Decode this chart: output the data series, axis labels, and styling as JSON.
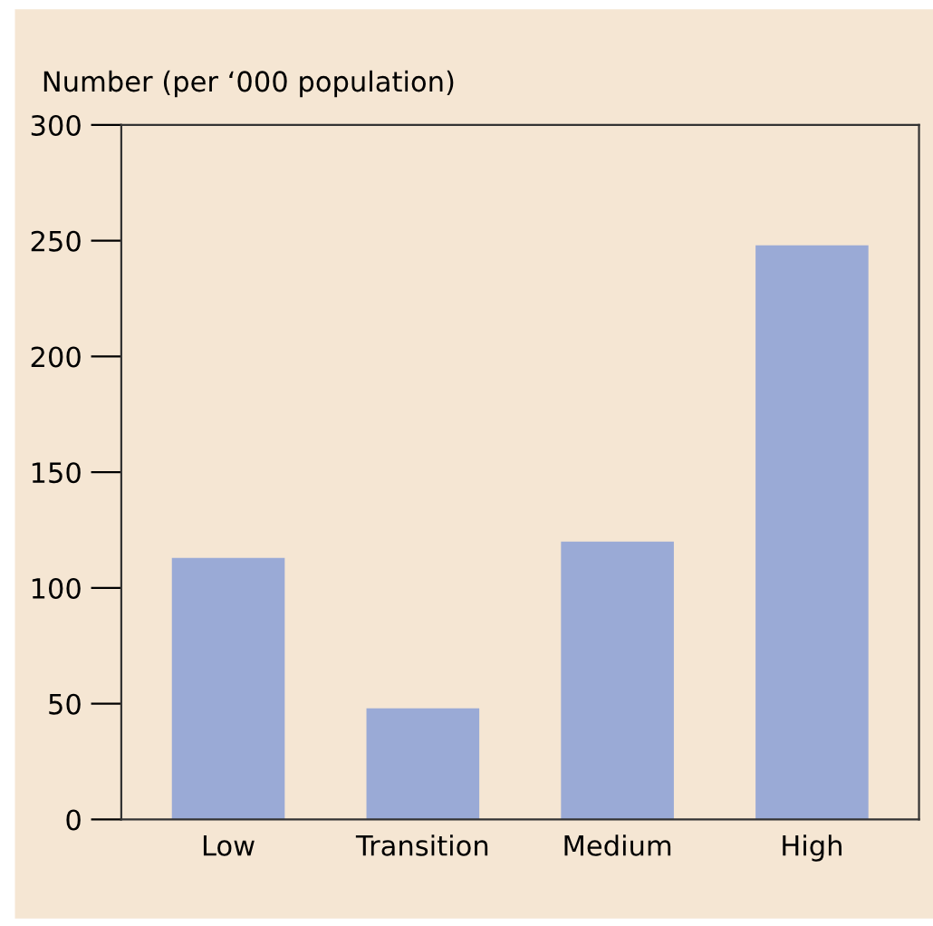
{
  "chart_data": {
    "type": "bar",
    "ylabel": "Number (per ‘000 population)",
    "categories": [
      "Low",
      "Transition",
      "Medium",
      "High"
    ],
    "values": [
      113,
      48,
      120,
      248
    ],
    "color": "#9aaad6",
    "ylim": [
      0,
      300
    ],
    "yticks": [
      0,
      50,
      100,
      150,
      200,
      250,
      300
    ],
    "grid": false,
    "legend": false
  }
}
